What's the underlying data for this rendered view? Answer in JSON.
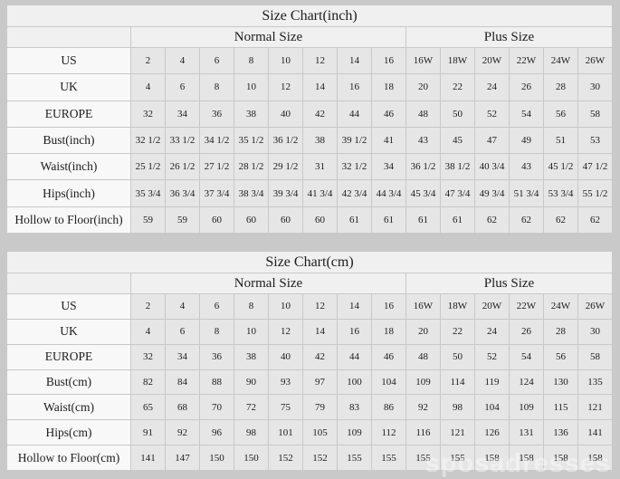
{
  "page": {
    "background": "#c9c9c9",
    "watermark_text": "sposadresses"
  },
  "colors": {
    "table_header_bg": "#f0f0f0",
    "label_cell_bg": "#f8f8f8",
    "value_cell_bg": "#e6e6e6",
    "border": "#c8c8c8",
    "text": "#1c1c1c"
  },
  "chart_data": [
    {
      "type": "table",
      "title": "Size Chart(inch)",
      "column_groups": [
        {
          "label": "Normal Size",
          "span": 8
        },
        {
          "label": "Plus Size",
          "span": 6
        }
      ],
      "rows": [
        {
          "label": "US",
          "values": [
            "2",
            "4",
            "6",
            "8",
            "10",
            "12",
            "14",
            "16",
            "16W",
            "18W",
            "20W",
            "22W",
            "24W",
            "26W"
          ]
        },
        {
          "label": "UK",
          "values": [
            "4",
            "6",
            "8",
            "10",
            "12",
            "14",
            "16",
            "18",
            "20",
            "22",
            "24",
            "26",
            "28",
            "30"
          ]
        },
        {
          "label": "EUROPE",
          "values": [
            "32",
            "34",
            "36",
            "38",
            "40",
            "42",
            "44",
            "46",
            "48",
            "50",
            "52",
            "54",
            "56",
            "58"
          ]
        },
        {
          "label": "Bust(inch)",
          "values": [
            "32 1/2",
            "33 1/2",
            "34 1/2",
            "35 1/2",
            "36 1/2",
            "38",
            "39 1/2",
            "41",
            "43",
            "45",
            "47",
            "49",
            "51",
            "53"
          ]
        },
        {
          "label": "Waist(inch)",
          "values": [
            "25 1/2",
            "26 1/2",
            "27 1/2",
            "28 1/2",
            "29 1/2",
            "31",
            "32 1/2",
            "34",
            "36 1/2",
            "38 1/2",
            "40 3/4",
            "43",
            "45 1/2",
            "47 1/2"
          ]
        },
        {
          "label": "Hips(inch)",
          "values": [
            "35 3/4",
            "36 3/4",
            "37 3/4",
            "38 3/4",
            "39 3/4",
            "41 3/4",
            "42 3/4",
            "44 3/4",
            "45 3/4",
            "47 3/4",
            "49 3/4",
            "51 3/4",
            "53 3/4",
            "55 1/2"
          ]
        },
        {
          "label": "Hollow to Floor(inch)",
          "values": [
            "59",
            "59",
            "60",
            "60",
            "60",
            "60",
            "61",
            "61",
            "61",
            "61",
            "62",
            "62",
            "62",
            "62"
          ]
        }
      ]
    },
    {
      "type": "table",
      "title": "Size Chart(cm)",
      "column_groups": [
        {
          "label": "Normal Size",
          "span": 8
        },
        {
          "label": "Plus Size",
          "span": 6
        }
      ],
      "rows": [
        {
          "label": "US",
          "values": [
            "2",
            "4",
            "6",
            "8",
            "10",
            "12",
            "14",
            "16",
            "16W",
            "18W",
            "20W",
            "22W",
            "24W",
            "26W"
          ]
        },
        {
          "label": "UK",
          "values": [
            "4",
            "6",
            "8",
            "10",
            "12",
            "14",
            "16",
            "18",
            "20",
            "22",
            "24",
            "26",
            "28",
            "30"
          ]
        },
        {
          "label": "EUROPE",
          "values": [
            "32",
            "34",
            "36",
            "38",
            "40",
            "42",
            "44",
            "46",
            "48",
            "50",
            "52",
            "54",
            "56",
            "58"
          ]
        },
        {
          "label": "Bust(cm)",
          "values": [
            "82",
            "84",
            "88",
            "90",
            "93",
            "97",
            "100",
            "104",
            "109",
            "114",
            "119",
            "124",
            "130",
            "135"
          ]
        },
        {
          "label": "Waist(cm)",
          "values": [
            "65",
            "68",
            "70",
            "72",
            "75",
            "79",
            "83",
            "86",
            "92",
            "98",
            "104",
            "109",
            "115",
            "121"
          ]
        },
        {
          "label": "Hips(cm)",
          "values": [
            "91",
            "92",
            "96",
            "98",
            "101",
            "105",
            "109",
            "112",
            "116",
            "121",
            "126",
            "131",
            "136",
            "141"
          ]
        },
        {
          "label": "Hollow to Floor(cm)",
          "values": [
            "141",
            "147",
            "150",
            "150",
            "152",
            "152",
            "155",
            "155",
            "155",
            "155",
            "158",
            "158",
            "158",
            "158"
          ]
        }
      ]
    }
  ]
}
